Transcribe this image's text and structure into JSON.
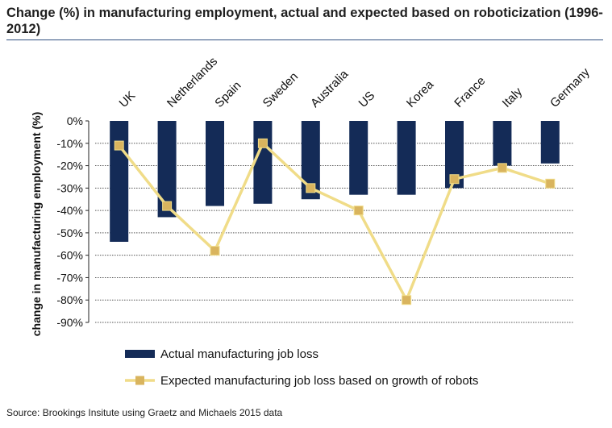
{
  "title": "Change (%) in manufacturing employment, actual and expected based on roboticization (1996-2012)",
  "source": "Source: Brookings Insitute using Graetz and Michaels 2015 data",
  "colors": {
    "bar": "#142b57",
    "line": "#f0dc88",
    "marker": "#d9b45e",
    "grid": "#555555"
  },
  "chart_data": {
    "type": "bar",
    "categories": [
      "UK",
      "Netherlands",
      "Spain",
      "Sweden",
      "Australia",
      "US",
      "Korea",
      "France",
      "Italy",
      "Germany"
    ],
    "series": [
      {
        "name": "Actual manufacturing job loss",
        "type": "bar",
        "values": [
          -54,
          -43,
          -38,
          -37,
          -35,
          -33,
          -33,
          -30,
          -20,
          -19
        ]
      },
      {
        "name": "Expected manufacturing job loss based on growth of robots",
        "type": "line",
        "values": [
          -11,
          -38,
          -58,
          -10,
          -30,
          -40,
          -80,
          -26,
          -21,
          -28
        ]
      }
    ],
    "ylabel": "change in manufacturing employment (%)",
    "xlabel": "",
    "ylim": [
      -90,
      0
    ],
    "yticks": [
      "0%",
      "-10%",
      "-20%",
      "-30%",
      "-40%",
      "-50%",
      "-60%",
      "-70%",
      "-80%",
      "-90%"
    ],
    "grid": "horizontal",
    "legend": "bottom"
  }
}
